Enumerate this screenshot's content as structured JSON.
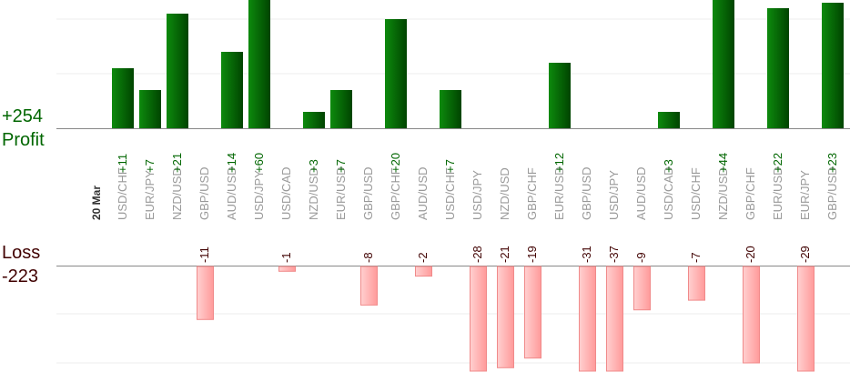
{
  "chart_data": {
    "type": "bar",
    "date_label": "20 Mar",
    "profit": {
      "total_label": "+254",
      "title": "Profit",
      "color": "#006600"
    },
    "loss": {
      "total_label": "-223",
      "title": "Loss",
      "color": "#400000"
    },
    "categories": [
      "USD/CHF",
      "EUR/JPY",
      "NZD/USD",
      "GBP/USD",
      "AUD/USD",
      "USD/JPY",
      "USD/CAD",
      "NZD/USD",
      "EUR/USD",
      "GBP/USD",
      "GBP/CHF",
      "AUD/USD",
      "USD/CHF",
      "USD/JPY",
      "NZD/USD",
      "GBP/CHF",
      "EUR/USD",
      "GBP/USD",
      "USD/JPY",
      "AUD/USD",
      "USD/CAD",
      "USD/CHF",
      "NZD/USD",
      "GBP/CHF",
      "EUR/USD",
      "EUR/JPY",
      "GBP/USD"
    ],
    "series": [
      {
        "name": "Profit",
        "values": [
          11,
          7,
          21,
          null,
          14,
          60,
          null,
          3,
          7,
          null,
          20,
          null,
          7,
          null,
          null,
          null,
          12,
          null,
          null,
          null,
          3,
          null,
          44,
          null,
          22,
          null,
          23
        ],
        "labels": [
          "+11",
          "+7",
          "+21",
          null,
          "+14",
          "+60",
          null,
          "+3",
          "+7",
          null,
          "+20",
          null,
          "+7",
          null,
          null,
          null,
          "+12",
          null,
          null,
          null,
          "+3",
          null,
          "+44",
          null,
          "+22",
          null,
          "+23"
        ]
      },
      {
        "name": "Loss",
        "values": [
          null,
          null,
          null,
          -11,
          null,
          null,
          -1,
          null,
          null,
          -8,
          null,
          -2,
          null,
          -28,
          -21,
          -19,
          null,
          -31,
          -37,
          -9,
          null,
          -7,
          null,
          -20,
          null,
          -29,
          null
        ],
        "labels": [
          null,
          null,
          null,
          "-11",
          null,
          null,
          "-1",
          null,
          null,
          "-8",
          null,
          "-2",
          null,
          "-28",
          "-21",
          "-19",
          null,
          "-31",
          "-37",
          "-9",
          null,
          "-7",
          null,
          "-20",
          null,
          "-29",
          null
        ]
      }
    ]
  }
}
